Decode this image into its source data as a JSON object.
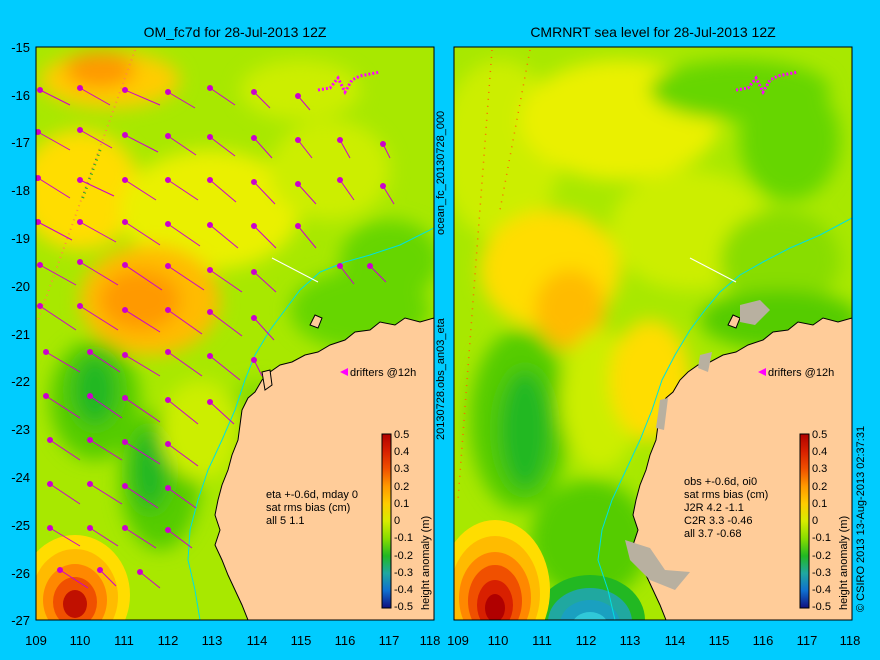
{
  "left_panel": {
    "title": "OM_fc7d for 28-Jul-2013 12Z",
    "drifters_label": "drifters @12h",
    "stats": [
      "eta +-0.6d, mday 0",
      "sat rms bias (cm)",
      "all 5 1.1"
    ]
  },
  "right_panel": {
    "title": "CMRNRT sea level  for 28-Jul-2013 12Z",
    "drifters_label": "drifters @12h",
    "stats": [
      "obs +-0.6d, oi0",
      "sat rms bias (cm)",
      "J2R   4.2  -1.1",
      "C2R   3.3  -0.46",
      "all    3.7  -0.68"
    ]
  },
  "left_side_label": "20130728.obs_an03_eta",
  "left_side_label2": "ocean_fc_20130728_000",
  "right_side_label": "© CSIRO 2013   13-Aug-2013 02:37:31",
  "x_ticks": [
    "109",
    "110",
    "111",
    "112",
    "113",
    "114",
    "115",
    "116",
    "117",
    "118"
  ],
  "y_ticks": [
    "-15",
    "-16",
    "-17",
    "-18",
    "-19",
    "-20",
    "-21",
    "-22",
    "-23",
    "-24",
    "-25",
    "-26",
    "-27"
  ],
  "colorbar": {
    "label": "height anomaly (m)",
    "ticks": [
      "0.5",
      "0.4",
      "0.3",
      "0.2",
      "0.1",
      "0",
      "-0.1",
      "-0.2",
      "-0.3",
      "-0.4",
      "-0.5"
    ],
    "colors": [
      "#b00000",
      "#d82000",
      "#f05000",
      "#ff8800",
      "#ffbb00",
      "#e0e800",
      "#a8e800",
      "#66d600",
      "#22b822",
      "#20a880",
      "#1090d0",
      "#1050c0",
      "#101080"
    ]
  },
  "map_extent": {
    "lon": [
      109,
      118
    ],
    "lat": [
      -27,
      -15
    ]
  }
}
